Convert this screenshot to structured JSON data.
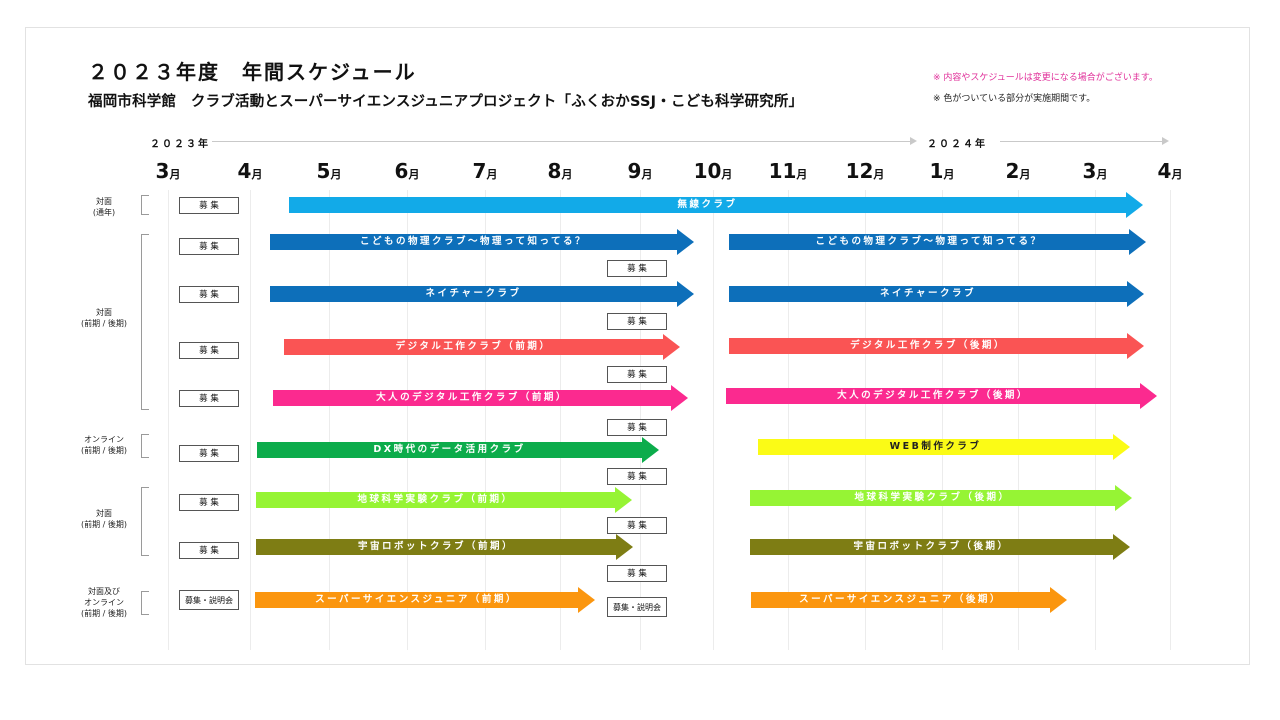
{
  "header": {
    "title": "２０２３年度　年間スケジュール",
    "subtitle": "福岡市科学館　クラブ活動とスーパーサイエンスジュニアプロジェクト「ふくおかSSJ・こども科学研究所」",
    "note_change": "※ 内容やスケジュールは変更になる場合がございます。",
    "note_color": "※ 色がついている部分が実施期間です。"
  },
  "timeline": {
    "year_start": "２０２３年",
    "year_end": "２０２４年",
    "month_unit": "月",
    "months": [
      "3",
      "4",
      "5",
      "6",
      "7",
      "8",
      "9",
      "10",
      "11",
      "12",
      "1",
      "2",
      "3",
      "4"
    ]
  },
  "groups": [
    {
      "label_lines": [
        "対面",
        "(通年)"
      ]
    },
    {
      "label_lines": [
        "対面",
        "(前期 / 後期)"
      ]
    },
    {
      "label_lines": [
        "オンライン",
        "(前期 / 後期)"
      ]
    },
    {
      "label_lines": [
        "対面",
        "(前期 / 後期)"
      ]
    },
    {
      "label_lines": [
        "対面及び",
        "オンライン",
        "(前期 / 後期)"
      ]
    }
  ],
  "recruit": {
    "label": "募 集",
    "label_session": "募集・説明会"
  },
  "programs": [
    {
      "name": "無線クラブ",
      "color": "#12aae8",
      "text_color": "#ffffff"
    },
    {
      "name": "こどもの物理クラブ～物理って知ってる？",
      "color": "#0d6fba",
      "text_color": "#ffffff"
    },
    {
      "name": "こどもの物理クラブ～物理って知ってる？",
      "color": "#0d6fba",
      "text_color": "#ffffff"
    },
    {
      "name": "ネイチャークラブ",
      "color": "#0d6fba",
      "text_color": "#ffffff"
    },
    {
      "name": "ネイチャークラブ",
      "color": "#0d6fba",
      "text_color": "#ffffff"
    },
    {
      "name": "デジタル工作クラブ（前期）",
      "color": "#fa5454",
      "text_color": "#ffffff"
    },
    {
      "name": "デジタル工作クラブ（後期）",
      "color": "#fa5454",
      "text_color": "#ffffff"
    },
    {
      "name": "大人のデジタル工作クラブ（前期）",
      "color": "#fb2a8f",
      "text_color": "#ffffff"
    },
    {
      "name": "大人のデジタル工作クラブ（後期）",
      "color": "#fb2a8f",
      "text_color": "#ffffff"
    },
    {
      "name": "DX時代のデータ活用クラブ",
      "color": "#0cac4b",
      "text_color": "#ffffff"
    },
    {
      "name": "WEB制作クラブ",
      "color": "#fbfb16",
      "text_color": "#222222"
    },
    {
      "name": "地球科学実験クラブ（前期）",
      "color": "#96f434",
      "text_color": "#ffffff"
    },
    {
      "name": "地球科学実験クラブ（後期）",
      "color": "#96f434",
      "text_color": "#ffffff"
    },
    {
      "name": "宇宙ロボットクラブ（前期）",
      "color": "#7e7d14",
      "text_color": "#ffffff"
    },
    {
      "name": "宇宙ロボットクラブ（後期）",
      "color": "#7e7d14",
      "text_color": "#ffffff"
    },
    {
      "name": "スーパーサイエンスジュニア（前期）",
      "color": "#fb960f",
      "text_color": "#ffffff"
    },
    {
      "name": "スーパーサイエンスジュニア（後期）",
      "color": "#fb960f",
      "text_color": "#ffffff"
    }
  ]
}
